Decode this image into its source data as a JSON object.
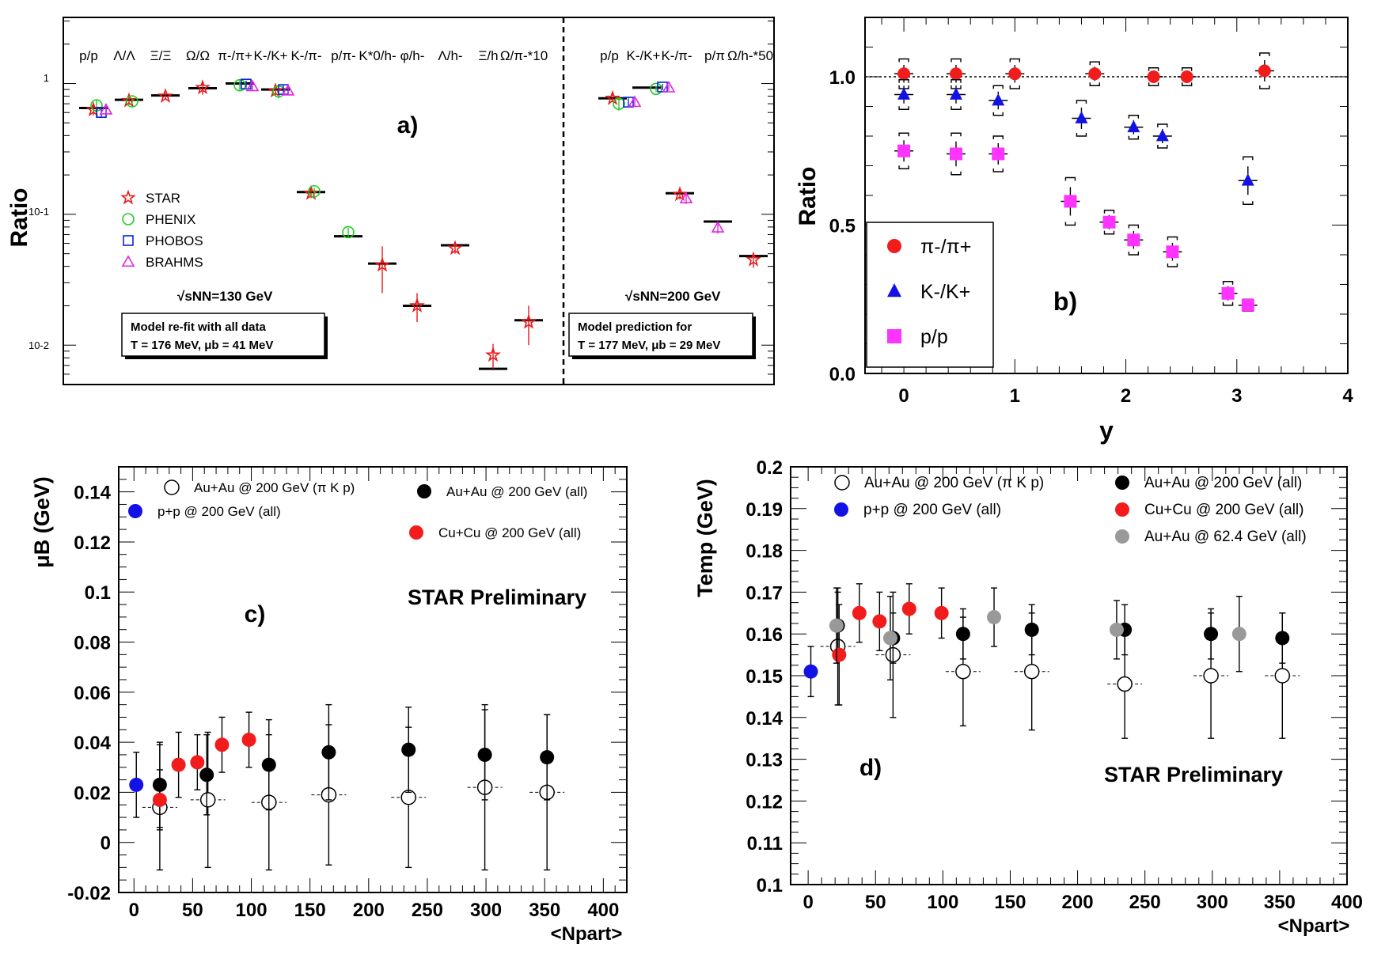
{
  "chart_data": [
    {
      "type": "scatter",
      "panel": "a)",
      "ylabel": "Ratio",
      "yscale": "log",
      "ylim": [
        0.005,
        3.2
      ],
      "yticks": [
        "1",
        "10-1",
        "10-2"
      ],
      "labels130": [
        "p/p",
        "Λ/Λ",
        "Ξ/Ξ",
        "Ω/Ω",
        "π-/π+",
        "K-/K+",
        "K-/π-",
        "p/π-",
        "K*0/h-",
        "φ/h-",
        "Λ/h-",
        "Ξ/h",
        "Ω/π-*10"
      ],
      "labels200": [
        "p/p",
        "K-/K+",
        "K-/π-",
        "p/π",
        "Ω/h-*50"
      ],
      "legend": [
        "STAR",
        "PHENIX",
        "PHOBOS",
        "BRAHMS"
      ],
      "energy130": "√sNN=130 GeV",
      "energy200": "√sNN=200 GeV",
      "box130": [
        "Model re-fit with all data",
        "T = 176 MeV,    μb = 41 MeV"
      ],
      "box200": [
        "Model prediction for",
        "T = 177 MeV,    μb = 29 MeV"
      ],
      "model130": [
        0.65,
        0.75,
        0.81,
        0.92,
        1.0,
        0.9,
        0.148,
        0.068,
        0.042,
        0.02,
        0.058,
        0.0066,
        0.0155
      ],
      "model200": [
        0.77,
        0.93,
        0.145,
        0.088,
        0.048
      ],
      "series": [
        {
          "name": "STAR",
          "points": [
            [
              0,
              0.63,
              0.06
            ],
            [
              1,
              0.74,
              0.05
            ],
            [
              2,
              0.8,
              0.05
            ],
            [
              3,
              0.93,
              0.11
            ],
            [
              5,
              0.88,
              0.08
            ],
            [
              6,
              0.145,
              0.012
            ],
            [
              8,
              0.041,
              0.016
            ],
            [
              9,
              0.02,
              0.005
            ],
            [
              10,
              0.055,
              0.005
            ],
            [
              11,
              0.0084,
              0.0018
            ],
            [
              12,
              0.015,
              0.005
            ],
            [
              13.5,
              0.77,
              0.05
            ],
            [
              15.5,
              0.142,
              0.012
            ],
            [
              17.5,
              0.045,
              0.006
            ]
          ]
        },
        {
          "name": "PHENIX",
          "points": [
            [
              0.1,
              0.68,
              0.07
            ],
            [
              1.1,
              0.73,
              0.04
            ],
            [
              4.0,
              0.97,
              0.1
            ],
            [
              5.1,
              0.87,
              0.1
            ],
            [
              6.1,
              0.15,
              0.01
            ],
            [
              7,
              0.073,
              0.006
            ],
            [
              13.7,
              0.7,
              0.08
            ],
            [
              14.8,
              0.91,
              0.05
            ]
          ]
        },
        {
          "name": "PHOBOS",
          "points": [
            [
              0.25,
              0.6,
              0.05
            ],
            [
              4.2,
              0.99,
              0.06
            ],
            [
              5.25,
              0.9,
              0.08
            ],
            [
              14.0,
              0.72,
              0.05
            ],
            [
              15.0,
              0.94,
              0.05
            ]
          ]
        },
        {
          "name": "BRAHMS",
          "points": [
            [
              0.4,
              0.63,
              0.05
            ],
            [
              4.4,
              0.95,
              0.06
            ],
            [
              5.4,
              0.88,
              0.06
            ],
            [
              14.2,
              0.72,
              0.05
            ],
            [
              15.2,
              0.93,
              0.05
            ],
            [
              15.7,
              0.132,
              0.012
            ],
            [
              16.5,
              0.079,
              0.008
            ]
          ]
        }
      ]
    },
    {
      "type": "scatter",
      "panel": "b)",
      "xlabel": "y",
      "ylabel": "Ratio",
      "xlim": [
        -0.35,
        4
      ],
      "ylim": [
        0,
        1.2
      ],
      "xticks": [
        "0",
        "1",
        "2",
        "3",
        "4"
      ],
      "yticks": [
        "0.0",
        "0.5",
        "1.0"
      ],
      "legend": [
        "π-/π+",
        "K-/K+",
        "p/p"
      ],
      "series": [
        {
          "name": "π-/π+",
          "x": [
            0,
            0.47,
            1.0,
            1.72,
            2.25,
            2.55,
            3.25
          ],
          "y": [
            1.01,
            1.01,
            1.01,
            1.01,
            1.0,
            1.0,
            1.02
          ],
          "err": [
            0.05,
            0.05,
            0.05,
            0.04,
            0.03,
            0.03,
            0.06
          ]
        },
        {
          "name": "K-/K+",
          "x": [
            0,
            0.47,
            0.85,
            1.6,
            2.07,
            2.33,
            3.1
          ],
          "y": [
            0.94,
            0.94,
            0.92,
            0.86,
            0.83,
            0.8,
            0.65
          ],
          "err": [
            0.05,
            0.05,
            0.05,
            0.06,
            0.04,
            0.04,
            0.08
          ]
        },
        {
          "name": "p/p",
          "x": [
            0,
            0.47,
            0.85,
            1.5,
            1.85,
            2.07,
            2.42,
            2.92,
            3.1
          ],
          "y": [
            0.75,
            0.74,
            0.74,
            0.58,
            0.51,
            0.45,
            0.41,
            0.27,
            0.23
          ],
          "err": [
            0.06,
            0.07,
            0.06,
            0.08,
            0.04,
            0.05,
            0.05,
            0.04,
            0.02
          ]
        }
      ],
      "reference_line": 1.0
    },
    {
      "type": "scatter",
      "panel": "c)",
      "xlabel": "<Npart>",
      "ylabel": "μB (GeV)",
      "xlim": [
        -13,
        420
      ],
      "ylim": [
        -0.02,
        0.15
      ],
      "xticks": [
        "0",
        "50",
        "100",
        "150",
        "200",
        "250",
        "300",
        "350",
        "400"
      ],
      "yticks": [
        "-0.02",
        "0",
        "0.02",
        "0.04",
        "0.06",
        "0.08",
        "0.1",
        "0.12",
        "0.14"
      ],
      "watermark": "STAR Preliminary",
      "legend": [
        "Au+Au @ 200 GeV (π K p)",
        "p+p @ 200 GeV (all)",
        "Au+Au @ 200 GeV (all)",
        "Cu+Cu @ 200 GeV (all)"
      ],
      "series": [
        {
          "name": "Au+Au @ 200 GeV (π K p)",
          "x": [
            22,
            63,
            115,
            166,
            234,
            299,
            352
          ],
          "y": [
            0.014,
            0.017,
            0.016,
            0.019,
            0.018,
            0.022,
            0.02
          ],
          "err": [
            0.025,
            0.027,
            0.027,
            0.028,
            0.028,
            0.033,
            0.031
          ]
        },
        {
          "name": "p+p @ 200 GeV (all)",
          "x": [
            2
          ],
          "y": [
            0.023
          ],
          "err": [
            0.013
          ]
        },
        {
          "name": "Au+Au @ 200 GeV (all)",
          "x": [
            22,
            62,
            115,
            166,
            234,
            299,
            352
          ],
          "y": [
            0.023,
            0.027,
            0.031,
            0.036,
            0.037,
            0.035,
            0.034
          ],
          "err": [
            0.017,
            0.016,
            0.018,
            0.019,
            0.017,
            0.018,
            0.017
          ]
        },
        {
          "name": "Cu+Cu @ 200 GeV (all)",
          "x": [
            22,
            38,
            54,
            75,
            98
          ],
          "y": [
            0.017,
            0.031,
            0.032,
            0.039,
            0.041
          ],
          "err": [
            0.012,
            0.013,
            0.011,
            0.011,
            0.011
          ]
        }
      ]
    },
    {
      "type": "scatter",
      "panel": "d)",
      "xlabel": "<Npart>",
      "ylabel": "Temp (GeV)",
      "xlim": [
        -13,
        400
      ],
      "ylim": [
        0.1,
        0.2
      ],
      "xticks": [
        "0",
        "50",
        "100",
        "150",
        "200",
        "250",
        "300",
        "350",
        "400"
      ],
      "yticks": [
        "0.1",
        "0.11",
        "0.12",
        "0.13",
        "0.14",
        "0.15",
        "0.16",
        "0.17",
        "0.18",
        "0.19",
        "0.2"
      ],
      "watermark": "STAR Preliminary",
      "legend": [
        "Au+Au @ 200 GeV (π K p)",
        "p+p @ 200 GeV (all)",
        "Au+Au @ 200 GeV (all)",
        "Cu+Cu @ 200 GeV (all)",
        "Au+Au @ 62.4 GeV (all)"
      ],
      "series": [
        {
          "name": "Au+Au @ 200 GeV (π K p)",
          "x": [
            22,
            63,
            115,
            166,
            235,
            299,
            352
          ],
          "y": [
            0.157,
            0.155,
            0.151,
            0.151,
            0.148,
            0.15,
            0.15
          ],
          "err": [
            0.014,
            0.015,
            0.013,
            0.014,
            0.013,
            0.015,
            0.015
          ]
        },
        {
          "name": "p+p @ 200 GeV (all)",
          "x": [
            2
          ],
          "y": [
            0.151
          ],
          "err": [
            0.006
          ]
        },
        {
          "name": "Au+Au @ 200 GeV (all)",
          "x": [
            22,
            63,
            115,
            166,
            235,
            299,
            352
          ],
          "y": [
            0.162,
            0.159,
            0.16,
            0.161,
            0.161,
            0.16,
            0.159
          ],
          "err": [
            0.008,
            0.006,
            0.006,
            0.006,
            0.006,
            0.006,
            0.006
          ]
        },
        {
          "name": "Cu+Cu @ 200 GeV (all)",
          "x": [
            23,
            38,
            53,
            75,
            99
          ],
          "y": [
            0.155,
            0.165,
            0.163,
            0.166,
            0.165
          ],
          "err": [
            0.012,
            0.007,
            0.007,
            0.006,
            0.006
          ]
        },
        {
          "name": "Au+Au @ 62.4 GeV (all)",
          "x": [
            21,
            61,
            138,
            229,
            320
          ],
          "y": [
            0.162,
            0.159,
            0.164,
            0.161,
            0.16
          ],
          "err": [
            0.009,
            0.01,
            0.007,
            0.007,
            0.009
          ]
        }
      ]
    }
  ],
  "colors": {
    "star": "#e8191a",
    "phenix": "#22cc22",
    "phobos": "#0b24d6",
    "brahms": "#e026e0",
    "red": "#f21c1c",
    "blue": "#1212e6",
    "magenta": "#ff33ff",
    "gray": "#999999"
  }
}
